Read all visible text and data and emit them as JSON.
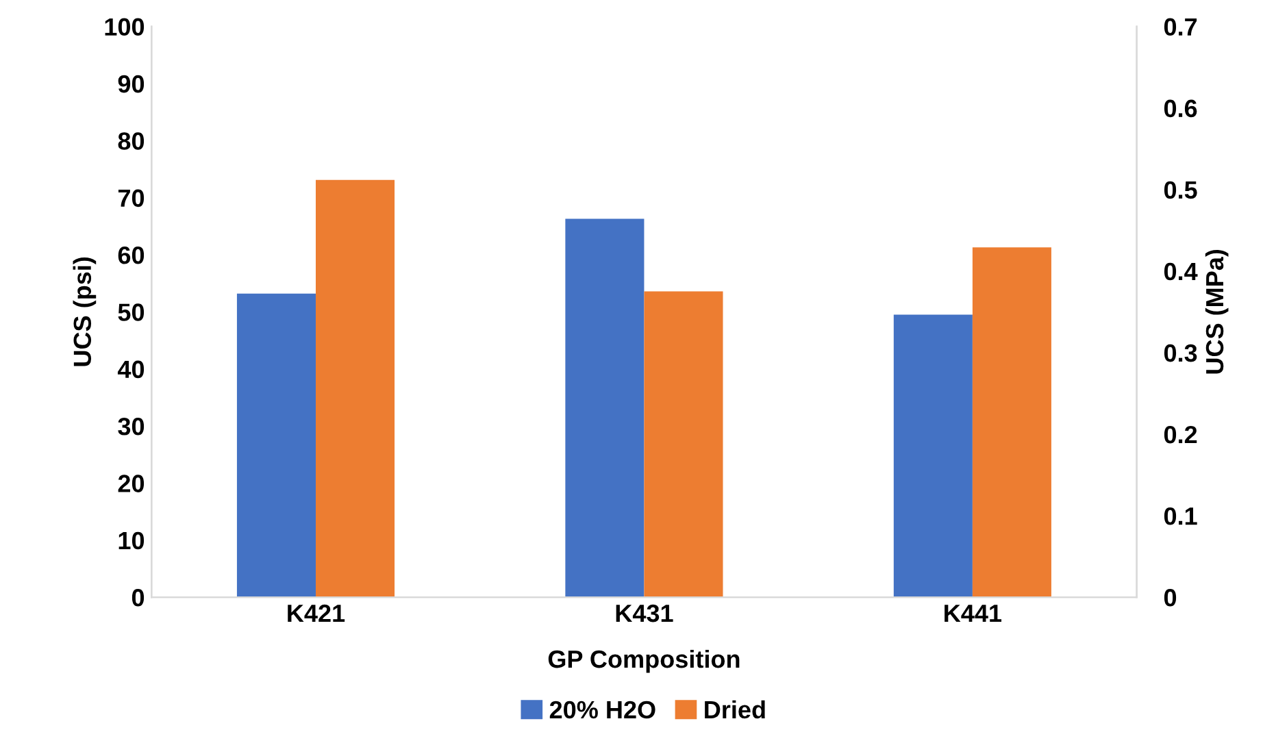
{
  "chart_data": {
    "type": "bar",
    "xlabel": "GP Composition",
    "ylabel": "UCS (psi)",
    "y2label": "UCS (MPa)",
    "categories": [
      "K421",
      "K431",
      "K441"
    ],
    "series": [
      {
        "name": "20% H2O",
        "color": "#4472c4",
        "values": [
          53.2,
          66.3,
          49.5
        ]
      },
      {
        "name": "Dried",
        "color": "#ed7d31",
        "values": [
          73.1,
          53.6,
          61.3
        ]
      }
    ],
    "ylim": [
      0,
      100
    ],
    "yticks": [
      0,
      10,
      20,
      30,
      40,
      50,
      60,
      70,
      80,
      90,
      100
    ],
    "y2lim": [
      0,
      0.7
    ],
    "y2ticks": [
      0,
      0.1,
      0.2,
      0.3,
      0.4,
      0.5,
      0.6,
      0.7
    ],
    "grid": false,
    "legend": "bottom"
  }
}
